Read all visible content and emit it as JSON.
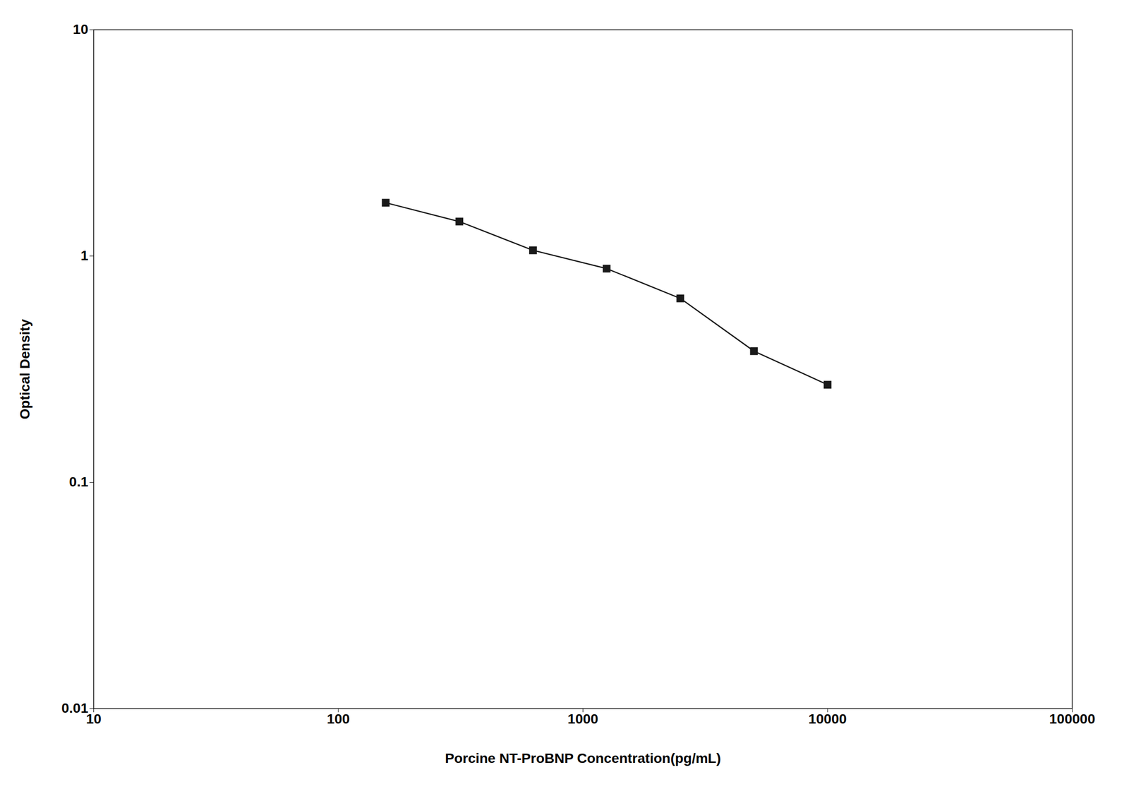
{
  "chart_data": {
    "type": "line",
    "xlabel": "Porcine NT-ProBNP Concentration(pg/mL)",
    "ylabel": "Optical Density",
    "x": [
      156.25,
      312.5,
      625,
      1250,
      2500,
      5000,
      10000
    ],
    "values": [
      1.72,
      1.42,
      1.06,
      0.88,
      0.65,
      0.38,
      0.27
    ],
    "color": "#1a1a1a",
    "marker": "square",
    "log": true,
    "xlim": [
      10,
      100000
    ],
    "ylim": [
      0.01,
      10
    ],
    "xticks": [
      10,
      100,
      1000,
      10000,
      100000
    ],
    "yticks": [
      0.01,
      0.1,
      1,
      10
    ],
    "grid": false
  }
}
